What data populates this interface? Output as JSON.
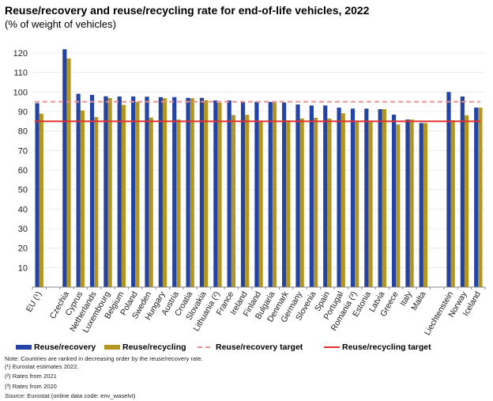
{
  "chart_data": {
    "type": "bar",
    "title": "Reuse/recovery and reuse/recycling rate for end-of-life vehicles, 2022",
    "subtitle": "(% of weight of vehicles)",
    "ylim": [
      0,
      120
    ],
    "yticks": [
      10,
      20,
      30,
      40,
      50,
      60,
      70,
      80,
      90,
      100,
      110,
      120
    ],
    "grid": true,
    "legend_position": "bottom",
    "categories": [
      "EU (¹)",
      "Czechia",
      "Cyprus",
      "Netherlands",
      "Luxembourg",
      "Belgium",
      "Poland",
      "Sweden",
      "Hungary",
      "Austria",
      "Croatia",
      "Slovakia",
      "Lithuania (²)",
      "France",
      "Ireland",
      "Finland",
      "Bulgaria",
      "Denmark",
      "Germany",
      "Slovenia",
      "Spain",
      "Portugal",
      "Romania (³)",
      "Estonia",
      "Latvia",
      "Greece",
      "Italy",
      "Malta",
      "Liechtenstein",
      "Norway",
      "Iceland"
    ],
    "series": [
      {
        "name": "Reuse/recovery",
        "color": "#2443a6",
        "values": [
          94.3,
          121.9,
          99.1,
          98.5,
          97.8,
          97.7,
          97.7,
          97.6,
          97.4,
          97.4,
          97.0,
          97.0,
          95.7,
          95.7,
          95.4,
          95.0,
          94.9,
          94.6,
          93.6,
          93.1,
          93.1,
          92.0,
          91.5,
          91.5,
          91.2,
          88.4,
          85.9,
          84.1,
          100.0,
          97.7,
          92.0
        ]
      },
      {
        "name": "Reuse/recycling",
        "color": "#b3961f",
        "values": [
          88.9,
          117.2,
          90.5,
          87.2,
          96.9,
          93.4,
          95.0,
          86.9,
          96.8,
          85.9,
          96.8,
          95.8,
          94.5,
          88.2,
          88.3,
          85.1,
          94.6,
          85.5,
          86.4,
          86.8,
          86.4,
          89.1,
          85.1,
          85.1,
          91.2,
          83.4,
          85.9,
          84.1,
          85.5,
          88.1,
          92.0
        ]
      }
    ],
    "targets": [
      {
        "name": "Reuse/recovery target",
        "value": 95,
        "color": "#f08f8f",
        "style": "dashed"
      },
      {
        "name": "Reuse/recycling target",
        "value": 85,
        "color": "#e03030",
        "style": "solid"
      }
    ]
  },
  "notes": {
    "note": "Note: Countries are ranked in decreasing order by the reuse/recovery rate.",
    "fn1": "(¹) Eurostat estimates 2022.",
    "fn2": "(²) Rates from 2021",
    "fn3": "(³) Rates from 2020",
    "source_label": "Source:",
    "source_text": " Eurostat (online data code: env_waselvt)"
  }
}
